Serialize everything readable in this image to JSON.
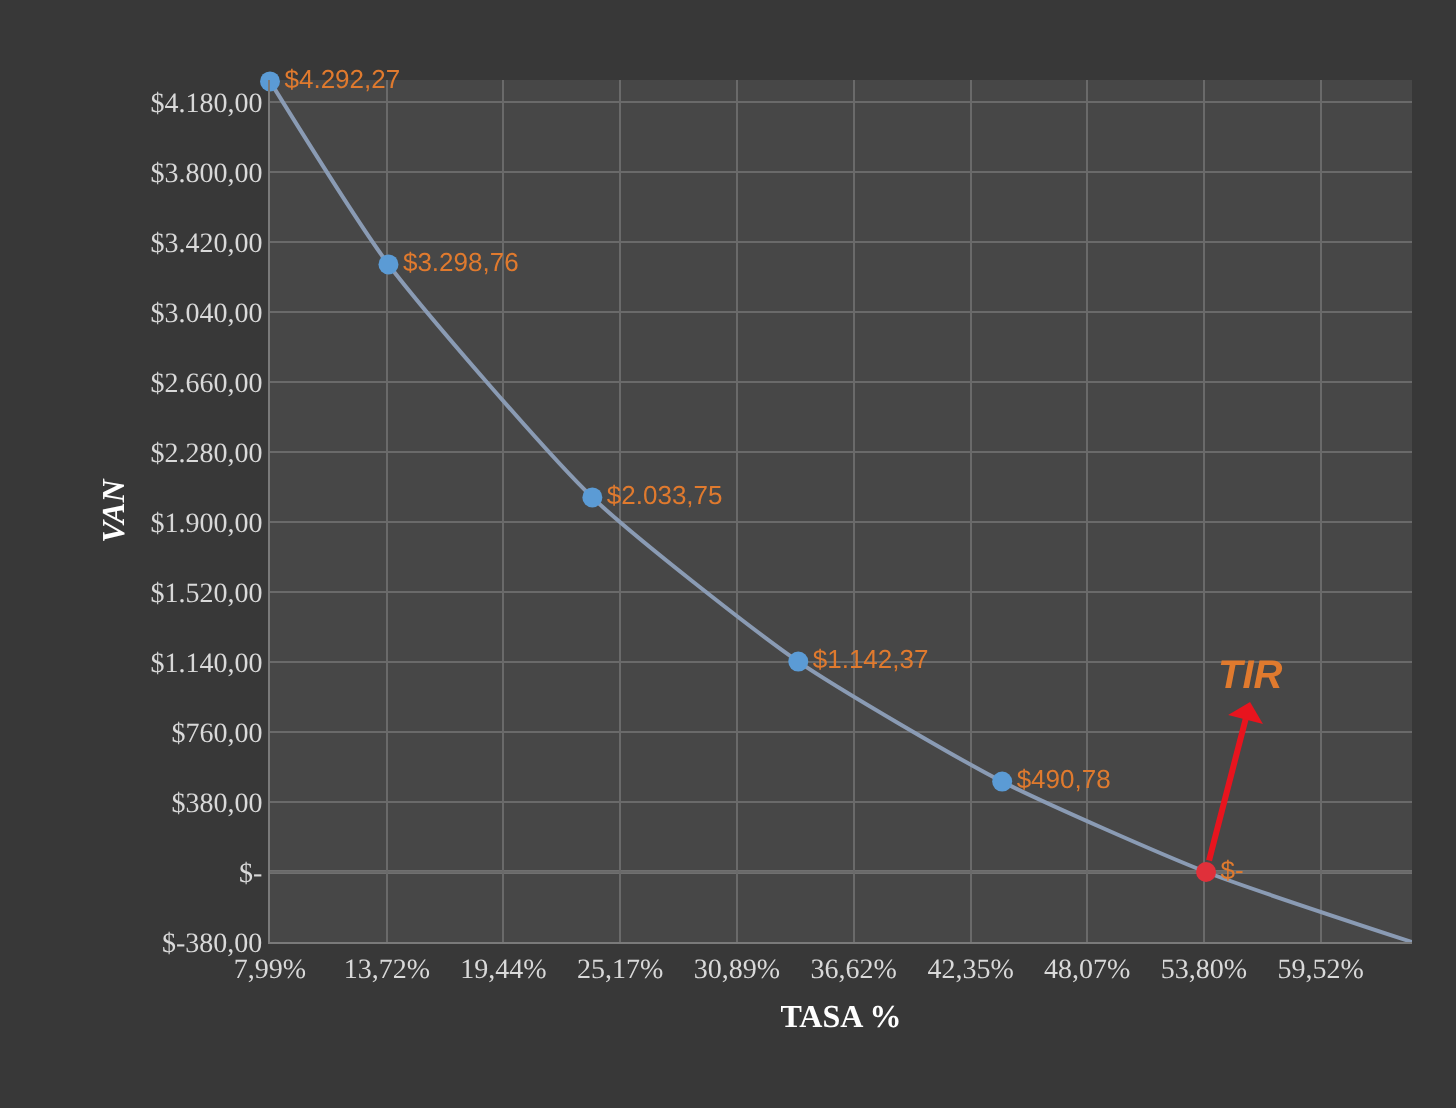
{
  "chart_data": {
    "type": "line",
    "xlabel": "TASA %",
    "ylabel": "VAN",
    "xlim": [
      7.99,
      64
    ],
    "ylim": [
      -380,
      4300
    ],
    "xticks": [
      {
        "value": 7.99,
        "label": "7,99%"
      },
      {
        "value": 13.72,
        "label": "13,72%"
      },
      {
        "value": 19.44,
        "label": "19,44%"
      },
      {
        "value": 25.17,
        "label": "25,17%"
      },
      {
        "value": 30.89,
        "label": "30,89%"
      },
      {
        "value": 36.62,
        "label": "36,62%"
      },
      {
        "value": 42.35,
        "label": "42,35%"
      },
      {
        "value": 48.07,
        "label": "48,07%"
      },
      {
        "value": 53.8,
        "label": "53,80%"
      },
      {
        "value": 59.52,
        "label": "59,52%"
      }
    ],
    "yticks": [
      {
        "value": -380,
        "label": "$-380,00"
      },
      {
        "value": 0,
        "label": "$-"
      },
      {
        "value": 380,
        "label": "$380,00"
      },
      {
        "value": 760,
        "label": "$760,00"
      },
      {
        "value": 1140,
        "label": "$1.140,00"
      },
      {
        "value": 1520,
        "label": "$1.520,00"
      },
      {
        "value": 1900,
        "label": "$1.900,00"
      },
      {
        "value": 2280,
        "label": "$2.280,00"
      },
      {
        "value": 2660,
        "label": "$2.660,00"
      },
      {
        "value": 3040,
        "label": "$3.040,00"
      },
      {
        "value": 3420,
        "label": "$3.420,00"
      },
      {
        "value": 3800,
        "label": "$3.800,00"
      },
      {
        "value": 4180,
        "label": "$4.180,00"
      }
    ],
    "grid": true,
    "series": [
      {
        "marker": "none",
        "color": "#8a9bb4",
        "x": [
          7.99,
          13.8,
          23.8,
          33.9,
          43.9,
          53.9,
          64
        ],
        "values": [
          4292.27,
          3298.76,
          2033.75,
          1142.37,
          490.78,
          0,
          -380
        ]
      },
      {
        "type": "scatter",
        "marker": "circle",
        "colors": [
          "#5b9bd5",
          "#5b9bd5",
          "#5b9bd5",
          "#5b9bd5",
          "#5b9bd5",
          "#e0303a"
        ],
        "x": [
          7.99,
          13.8,
          23.8,
          33.9,
          43.9,
          53.9
        ],
        "values": [
          4292.27,
          3298.76,
          2033.75,
          1142.37,
          490.78,
          0
        ],
        "value_labels": [
          "$4.292,27",
          "$3.298,76",
          "$2.033,75",
          "$1.142,37",
          "$490,78",
          "$-"
        ]
      }
    ],
    "annotations": [
      {
        "text": "TIR",
        "x": 53.9,
        "y": 0
      }
    ]
  }
}
